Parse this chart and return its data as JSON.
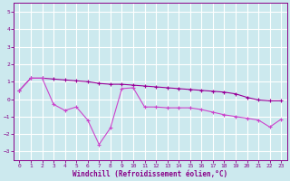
{
  "title": "",
  "xlabel": "Windchill (Refroidissement éolien,°C)",
  "ylabel": "",
  "background_color": "#cce9ee",
  "grid_color": "#ffffff",
  "line1_color": "#990099",
  "line2_color": "#cc44cc",
  "xlim": [
    -0.5,
    23.5
  ],
  "ylim": [
    -3.5,
    5.5
  ],
  "yticks": [
    -3,
    -2,
    -1,
    0,
    1,
    2,
    3,
    4,
    5
  ],
  "xticks": [
    0,
    1,
    2,
    3,
    4,
    5,
    6,
    7,
    8,
    9,
    10,
    11,
    12,
    13,
    14,
    15,
    16,
    17,
    18,
    19,
    20,
    21,
    22,
    23
  ],
  "series1_x": [
    0,
    1,
    2,
    3,
    4,
    5,
    6,
    7,
    8,
    9,
    10,
    11,
    12,
    13,
    14,
    15,
    16,
    17,
    18,
    19,
    20,
    21,
    22,
    23
  ],
  "series1_y": [
    0.5,
    1.2,
    1.2,
    1.15,
    1.1,
    1.05,
    1.0,
    0.9,
    0.85,
    0.85,
    0.8,
    0.75,
    0.7,
    0.65,
    0.6,
    0.55,
    0.5,
    0.45,
    0.4,
    0.3,
    0.1,
    -0.05,
    -0.1,
    -0.1
  ],
  "series2_x": [
    0,
    1,
    2,
    3,
    4,
    5,
    6,
    7,
    8,
    9,
    10,
    11,
    12,
    13,
    14,
    15,
    16,
    17,
    18,
    19,
    20,
    21,
    22,
    23
  ],
  "series2_y": [
    0.5,
    1.2,
    1.2,
    -0.3,
    -0.65,
    -0.45,
    -1.2,
    -2.6,
    -1.65,
    0.6,
    0.65,
    -0.45,
    -0.45,
    -0.5,
    -0.5,
    -0.5,
    -0.6,
    -0.75,
    -0.9,
    -1.0,
    -1.1,
    -1.2,
    -1.6,
    -1.15
  ]
}
